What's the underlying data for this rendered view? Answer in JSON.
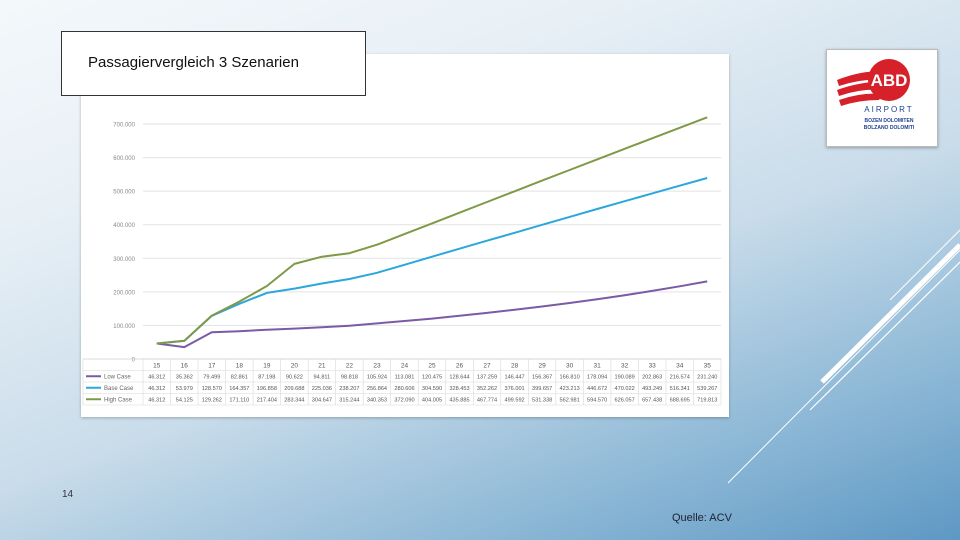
{
  "slide": {
    "title": "Passagiervergleich 3 Szenarien",
    "page_number": "14",
    "source": "Quelle: ACV"
  },
  "logo": {
    "brand": "ABD",
    "name": "AIRPORT",
    "line1": "BOZEN DOLOMITEN",
    "line2": "BOLZANO DOLOMITI",
    "colors": {
      "red": "#d6202a",
      "blue": "#1f3f8f"
    }
  },
  "chart_data": {
    "type": "line",
    "title": "Passagiervergleich 3 Szenarien",
    "xlabel": "",
    "ylabel": "",
    "ylim": [
      0,
      700000
    ],
    "yticks": [
      "0",
      "100.000",
      "200.000",
      "300.000",
      "400.000",
      "500.000",
      "600.000",
      "700.000"
    ],
    "categories": [
      "15",
      "16",
      "17",
      "18",
      "19",
      "20",
      "21",
      "22",
      "23",
      "24",
      "25",
      "26",
      "27",
      "28",
      "29",
      "30",
      "31",
      "32",
      "33",
      "34",
      "35"
    ],
    "series": [
      {
        "name": "Low Case",
        "color": "#7b5aa6",
        "values": [
          46312,
          35362,
          79499,
          82861,
          87198,
          90622,
          94811,
          98818,
          105924,
          113081,
          120475,
          128644,
          137259,
          146447,
          156367,
          166810,
          178094,
          190089,
          202863,
          216574,
          231240
        ],
        "labels": [
          "46.312",
          "35.362",
          "79.499",
          "82.861",
          "87.198",
          "90.622",
          "94.811",
          "98.818",
          "105.924",
          "113.081",
          "120.475",
          "128.644",
          "137.259",
          "146.447",
          "156.367",
          "166.810",
          "178.094",
          "190.089",
          "202.863",
          "216.574",
          "231.240"
        ]
      },
      {
        "name": "Base Case",
        "color": "#2aa7dc",
        "values": [
          46312,
          53979,
          128570,
          164357,
          196858,
          209688,
          225036,
          238207,
          256864,
          280606,
          304590,
          328453,
          352262,
          376001,
          399657,
          423213,
          446672,
          470022,
          493249,
          516341,
          539267
        ],
        "labels": [
          "46.312",
          "53.979",
          "128.570",
          "164.357",
          "196.858",
          "209.688",
          "225.036",
          "238.207",
          "256.864",
          "280.606",
          "304.590",
          "328.453",
          "352.262",
          "376.001",
          "399.657",
          "423.213",
          "446.672",
          "470.022",
          "493.249",
          "516.341",
          "539.267"
        ]
      },
      {
        "name": "High Case",
        "color": "#7f9a46",
        "values": [
          46312,
          54125,
          129262,
          171110,
          217404,
          283344,
          304647,
          315244,
          340353,
          372090,
          404005,
          435885,
          467774,
          499592,
          531338,
          562981,
          594570,
          626057,
          657438,
          688695,
          719813
        ],
        "labels": [
          "46.312",
          "54.125",
          "129.262",
          "171.110",
          "217.404",
          "283.344",
          "304.647",
          "315.244",
          "340.353",
          "372.090",
          "404.005",
          "435.885",
          "467.774",
          "499.592",
          "531.338",
          "562.981",
          "594.570",
          "626.057",
          "657.438",
          "688.695",
          "719.813"
        ]
      }
    ]
  }
}
